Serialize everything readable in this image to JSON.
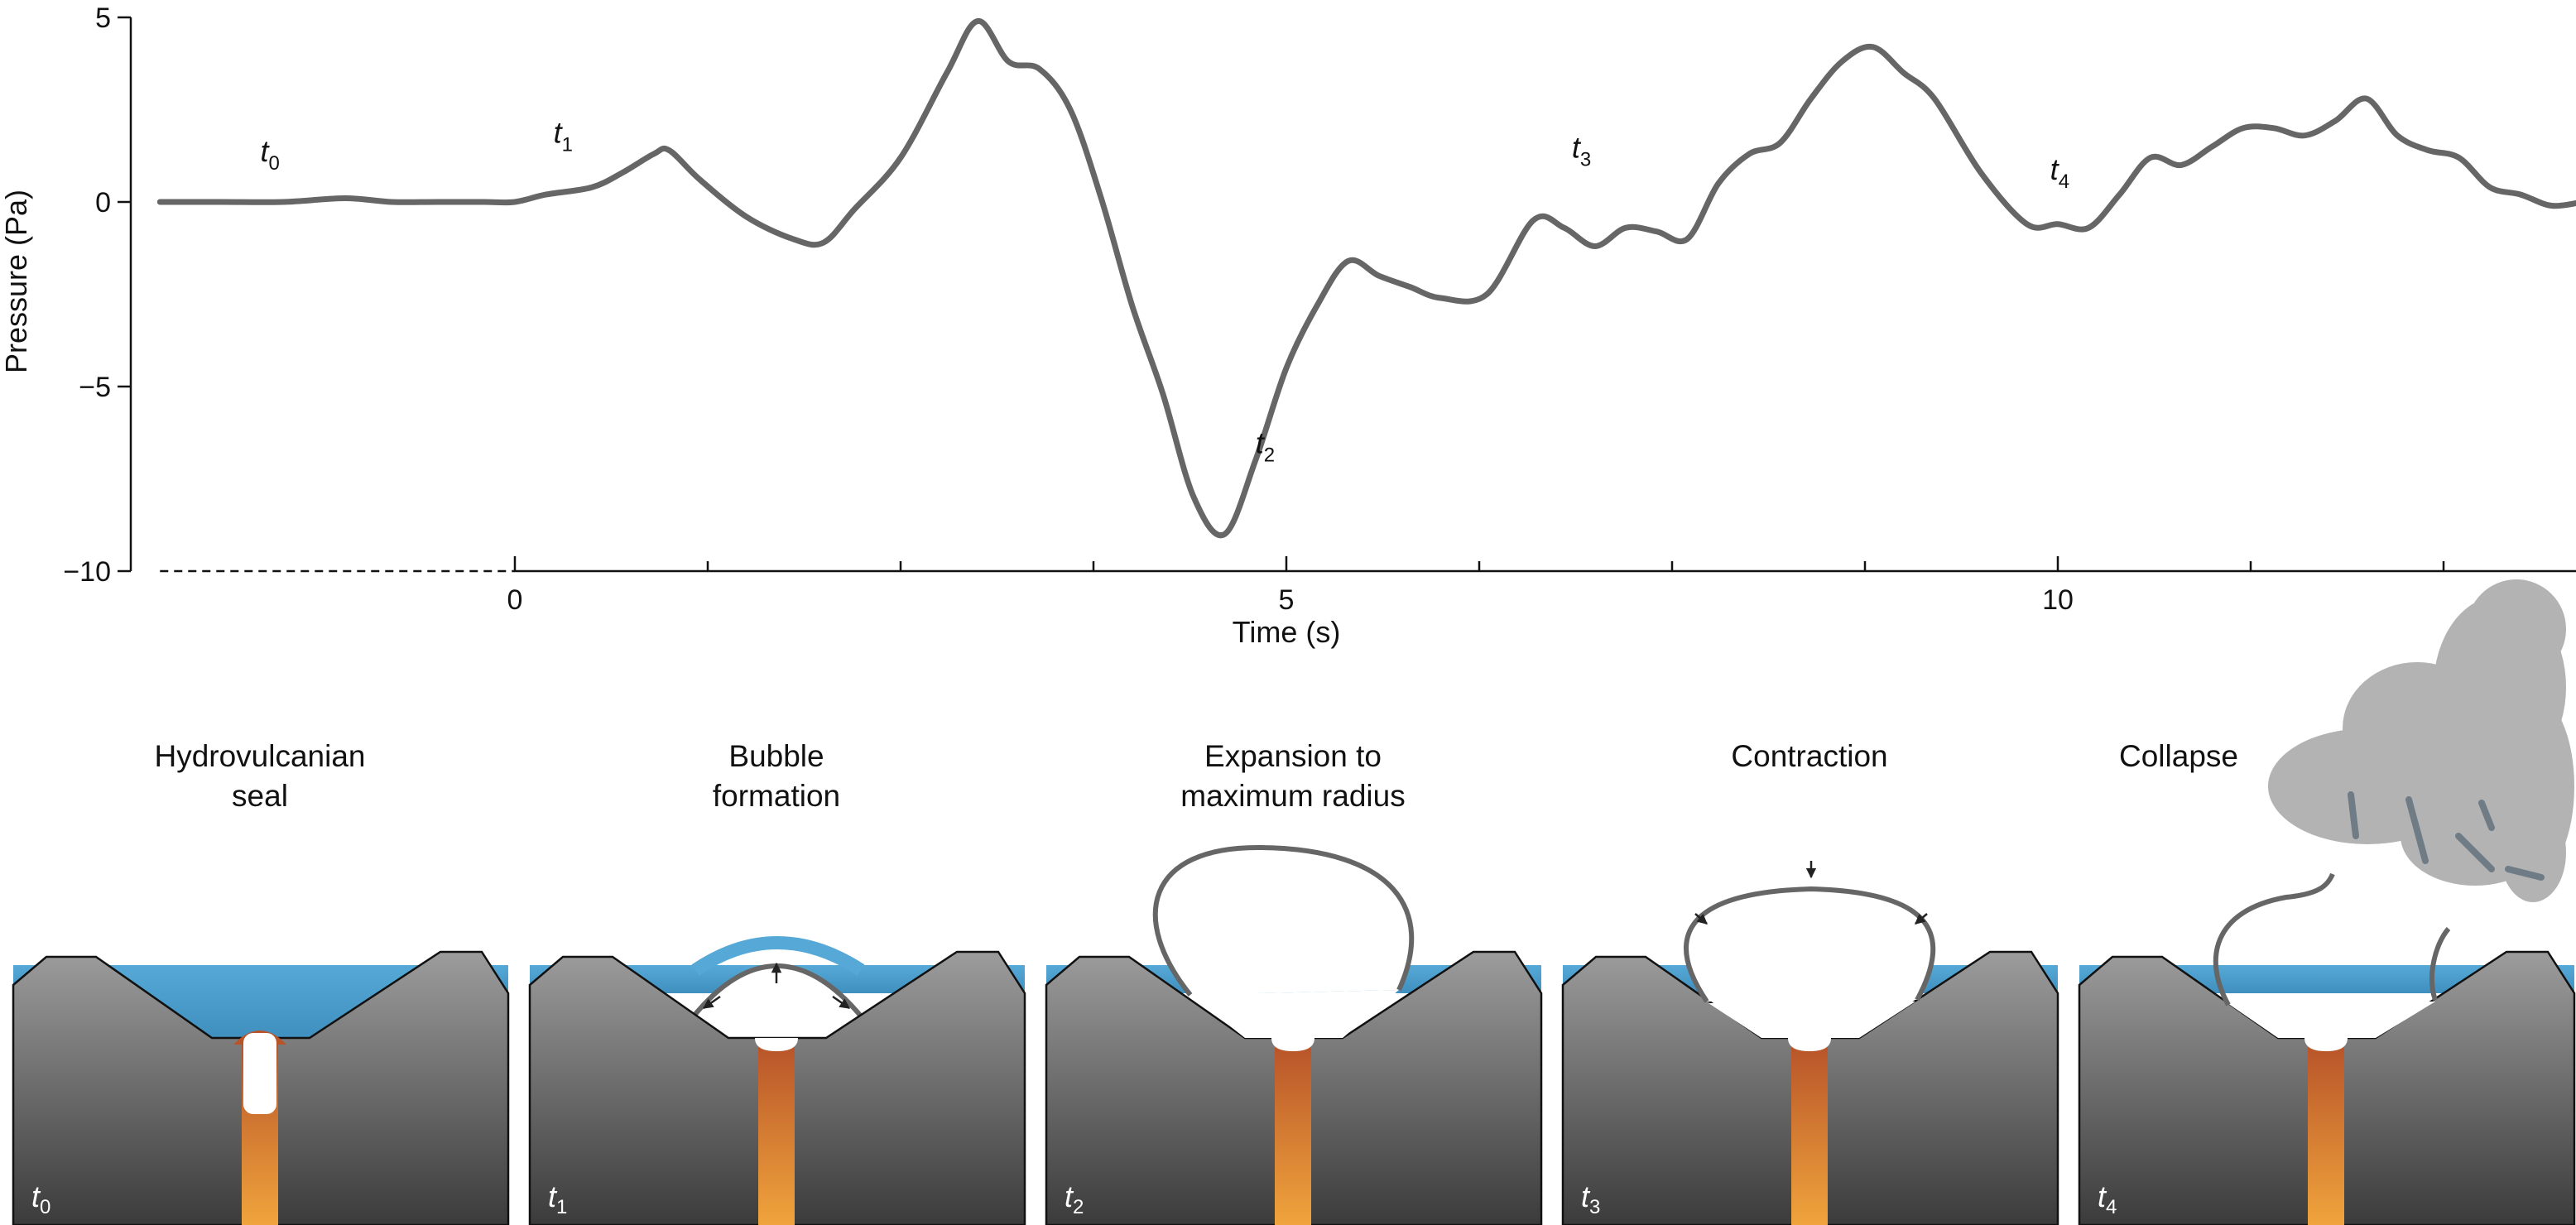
{
  "colors": {
    "curve": "#666666",
    "water": "#56a9d6",
    "rock_top": "#9c9c9c",
    "rock_bottom": "#3b3b3b",
    "magma_top": "#b8542a",
    "magma_bottom": "#f0a43c",
    "bubble_stroke": "#666666",
    "ash": "#b3b3b3"
  },
  "chart_data": {
    "type": "line",
    "xlabel": "Time (s)",
    "ylabel": "Pressure (Pa)",
    "xlim": [
      -2.3,
      13.4
    ],
    "ylim": [
      -10,
      5
    ],
    "x_ticks": [
      0,
      5,
      10
    ],
    "x_tick_labels": [
      "0",
      "5",
      "10"
    ],
    "y_ticks": [
      5,
      0,
      -5,
      -10
    ],
    "y_tick_labels": [
      "5",
      "0",
      "−5",
      "−10"
    ],
    "pre_zero_axis_dashed": true,
    "series": [
      {
        "x": [
          -2.3,
          -1.9,
          -1.5,
          -1.1,
          -0.8,
          -0.5,
          -0.2,
          0.0,
          0.2,
          0.5,
          0.7,
          0.9,
          1.0,
          1.2,
          1.5,
          1.8,
          2.0,
          2.2,
          2.5,
          2.8,
          3.0,
          3.2,
          3.4,
          3.6,
          3.8,
          4.0,
          4.2,
          4.4,
          4.6,
          4.8,
          5.0,
          5.2,
          5.4,
          5.6,
          5.8,
          6.0,
          6.3,
          6.6,
          6.8,
          7.0,
          7.2,
          7.4,
          7.6,
          7.8,
          8.0,
          8.2,
          8.4,
          8.6,
          8.8,
          9.0,
          9.2,
          9.5,
          9.8,
          10.0,
          10.2,
          10.4,
          10.6,
          10.8,
          11.0,
          11.2,
          11.4,
          11.6,
          11.8,
          12.0,
          12.2,
          12.4,
          12.6,
          12.8,
          13.0,
          13.2,
          13.4
        ],
        "y": [
          0.0,
          0.0,
          0.0,
          0.1,
          0.0,
          0.0,
          0.0,
          0.0,
          0.2,
          0.4,
          0.8,
          1.3,
          1.4,
          0.6,
          -0.4,
          -1.0,
          -1.1,
          -0.2,
          1.2,
          3.5,
          4.9,
          3.8,
          3.6,
          2.5,
          0.1,
          -2.8,
          -5.2,
          -8.0,
          -9.0,
          -7.0,
          -4.5,
          -2.8,
          -1.6,
          -2.0,
          -2.3,
          -2.6,
          -2.5,
          -0.5,
          -0.7,
          -1.2,
          -0.7,
          -0.8,
          -1.0,
          0.5,
          1.3,
          1.6,
          2.8,
          3.8,
          4.2,
          3.5,
          2.8,
          0.8,
          -0.6,
          -0.6,
          -0.7,
          0.2,
          1.2,
          1.0,
          1.5,
          2.0,
          2.0,
          1.8,
          2.2,
          2.8,
          1.8,
          1.4,
          1.2,
          0.4,
          0.2,
          -0.1,
          0.0
        ]
      }
    ],
    "time_markers": [
      {
        "label": "t",
        "sub": "0",
        "x": -1.65,
        "y": 1.1
      },
      {
        "label": "t",
        "sub": "1",
        "x": 0.25,
        "y": 1.6
      },
      {
        "label": "t",
        "sub": "2",
        "x": 4.8,
        "y": -6.8
      },
      {
        "label": "t",
        "sub": "3",
        "x": 6.85,
        "y": 1.2
      },
      {
        "label": "t",
        "sub": "4",
        "x": 9.95,
        "y": 0.6
      }
    ]
  },
  "panels": [
    {
      "title_lines": [
        "Hydrovulcanian",
        "seal"
      ],
      "t_label": "t",
      "t_sub": "0"
    },
    {
      "title_lines": [
        "Bubble",
        "formation"
      ],
      "t_label": "t",
      "t_sub": "1"
    },
    {
      "title_lines": [
        "Expansion to",
        "maximum radius"
      ],
      "t_label": "t",
      "t_sub": "2"
    },
    {
      "title_lines": [
        "Contraction"
      ],
      "t_label": "t",
      "t_sub": "3"
    },
    {
      "title_lines": [
        "Collapse"
      ],
      "t_label": "t",
      "t_sub": "4"
    }
  ]
}
